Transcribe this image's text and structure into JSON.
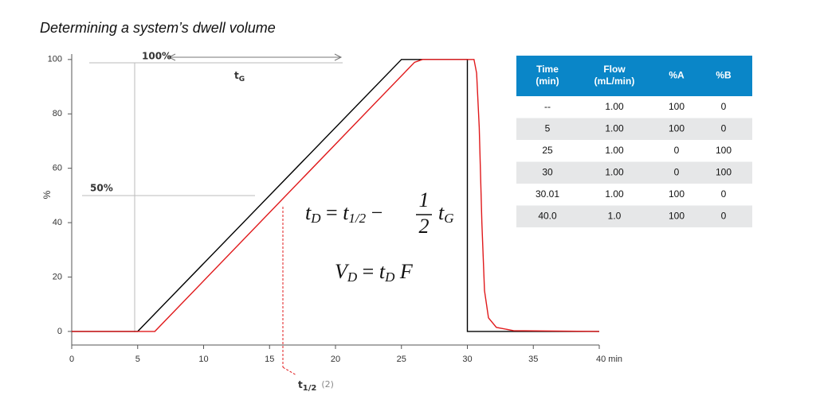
{
  "chart_data": {
    "type": "line",
    "title": "Determining a system’s dwell volume",
    "ylabel": "%",
    "xlim": [
      0,
      40
    ],
    "ylim": [
      -5,
      102
    ],
    "xticks": [
      0,
      5,
      10,
      15,
      20,
      25,
      30,
      35,
      {
        "value": 40,
        "label": "40 min"
      }
    ],
    "yticks": [
      0,
      20,
      40,
      60,
      80,
      100
    ],
    "series": [
      {
        "color": "#000000",
        "x": [
          0,
          5,
          25,
          30,
          30,
          40
        ],
        "values": [
          0,
          0,
          100,
          100,
          0,
          0
        ]
      },
      {
        "color": "#e0191b",
        "x": [
          0,
          6.3,
          25.4,
          26.0,
          26.6,
          30.5,
          30.7,
          30.9,
          31.1,
          31.3,
          31.6,
          32.2,
          33.5,
          40
        ],
        "values": [
          0,
          0,
          96,
          99,
          100,
          100,
          95,
          75,
          40,
          15,
          5,
          1.5,
          0.3,
          0
        ]
      }
    ],
    "annotations": {
      "full": "100%",
      "half": "50%",
      "tg": {
        "t": "t",
        "sub": "G"
      },
      "thalf": {
        "t": "t",
        "sub": "1/2",
        "note": "(2)"
      },
      "eq1": {
        "t1": "t",
        "s1": "D",
        "eqs": " = ",
        "t2": "t",
        "s2": "1/2",
        "minus": " −",
        "num": "1",
        "den": "2",
        "t3": "t",
        "s3": "G"
      },
      "eq2": {
        "t1": "V",
        "s1": "D",
        "eqs": " = ",
        "t2": "t",
        "s2": "D",
        "f": " F"
      }
    }
  },
  "table": {
    "header": [
      [
        "Time",
        "(min)"
      ],
      [
        "Flow",
        "(mL/min)"
      ],
      [
        "%A"
      ],
      [
        "%B"
      ]
    ],
    "rows": [
      [
        "--",
        "1.00",
        "100",
        "0"
      ],
      [
        "5",
        "1.00",
        "100",
        "0"
      ],
      [
        "25",
        "1.00",
        "0",
        "100"
      ],
      [
        "30",
        "1.00",
        "0",
        "100"
      ],
      [
        "30.01",
        "1.00",
        "100",
        "0"
      ],
      [
        "40.0",
        "1.0",
        "100",
        "0"
      ]
    ]
  }
}
